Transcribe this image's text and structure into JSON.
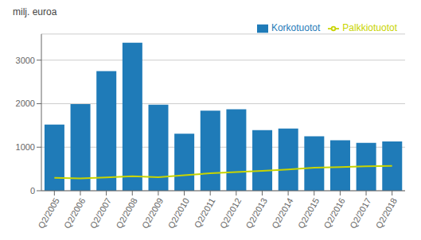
{
  "chart_data": {
    "type": "bar",
    "ylabel": "milj. euroa",
    "categories": [
      "Q2/2005",
      "Q2/2006",
      "Q2/2007",
      "Q2/2008",
      "Q2/2009",
      "Q2/2010",
      "Q2/2011",
      "Q2/2012",
      "Q2/2013",
      "Q2/2014",
      "Q2/2015",
      "Q2/2016",
      "Q2/2017",
      "Q2/2018"
    ],
    "series": [
      {
        "name": "Korkotuotot",
        "type": "bar",
        "color": "#1f7bb8",
        "values": [
          1520,
          1990,
          2750,
          3400,
          1975,
          1310,
          1840,
          1870,
          1390,
          1430,
          1250,
          1160,
          1100,
          1130
        ]
      },
      {
        "name": "Palkkiotuotot",
        "type": "line",
        "color": "#c8d400",
        "values": [
          295,
          285,
          305,
          335,
          310,
          355,
          400,
          430,
          455,
          490,
          530,
          545,
          560,
          570
        ]
      }
    ],
    "ylim": [
      0,
      3600
    ],
    "yticks": [
      0,
      1000,
      2000,
      3000
    ],
    "grid": true,
    "legend": "upper right"
  }
}
